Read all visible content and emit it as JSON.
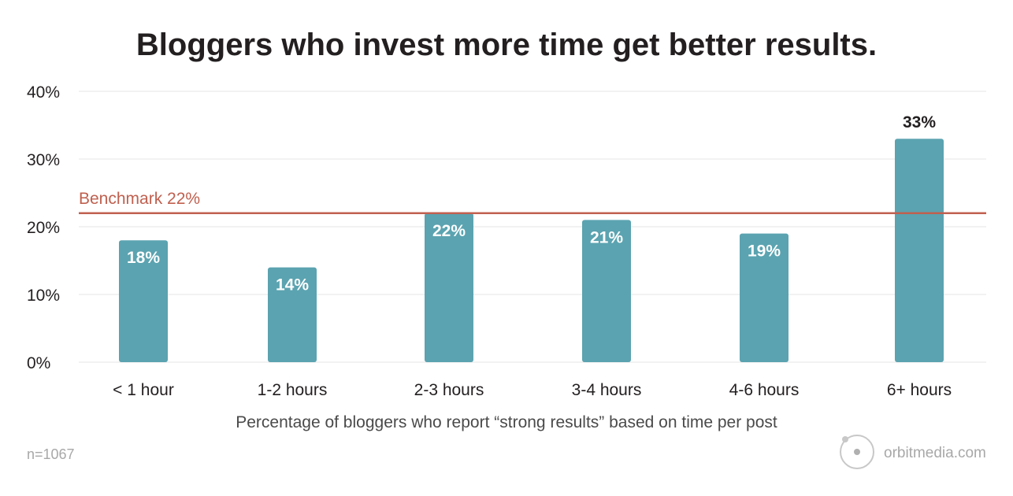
{
  "chart_data": {
    "type": "bar",
    "title": "Bloggers who invest more time get better results.",
    "xlabel": "Percentage of bloggers who report “strong results” based on time per post",
    "ylabel": "",
    "categories": [
      "< 1 hour",
      "1-2 hours",
      "2-3 hours",
      "3-4 hours",
      "4-6 hours",
      "6+ hours"
    ],
    "values": [
      18,
      14,
      22,
      21,
      19,
      33
    ],
    "data_labels": [
      "18%",
      "14%",
      "22%",
      "21%",
      "19%",
      "33%"
    ],
    "ylim": [
      0,
      40
    ],
    "yticks": [
      0,
      10,
      20,
      30,
      40
    ],
    "ytick_labels": [
      "0%",
      "10%",
      "20%",
      "30%",
      "40%"
    ],
    "grid": true,
    "benchmark": {
      "value": 22,
      "label": "Benchmark 22%"
    },
    "colors": {
      "bar": "#5ba3b0",
      "benchmark": "#c0604f",
      "grid": "#e6e6e6",
      "label_inside": "#ffffff",
      "label_outside": "#231f20"
    }
  },
  "footnote": "n=1067",
  "brand": {
    "text": "orbitmedia.com",
    "icon": "orbit-logo-icon"
  }
}
